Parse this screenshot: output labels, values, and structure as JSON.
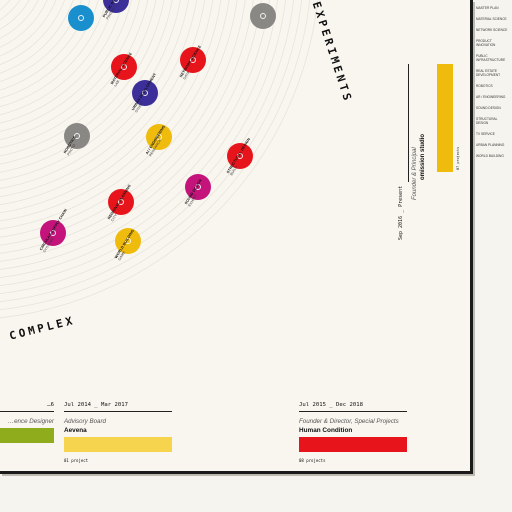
{
  "curved_text": {
    "experiments": "EXPERIMENTS",
    "complex": "COMPLEX"
  },
  "nodes": [
    {
      "color": "#1a8fce",
      "label": "",
      "sub": ""
    },
    {
      "color": "#3c2f9a",
      "label": "PUBLIC INFRASTRUCTURE",
      "sub": "PROJECT"
    },
    {
      "color": "#8a8884",
      "label": "",
      "sub": ""
    },
    {
      "color": "#e8141c",
      "label": "NETWORK SCIENCE",
      "sub": "DATA"
    },
    {
      "color": "#e8141c",
      "label": "MATERIAL SCIENCE",
      "sub": "LAB"
    },
    {
      "color": "#3c2f9a",
      "label": "URBAN DEVELOPMENT",
      "sub": "STUDY"
    },
    {
      "color": "#8a8884",
      "label": "ROBOTICS",
      "sub": "PROTO"
    },
    {
      "color": "#efbb0c",
      "label": "AI / ENGINEERING",
      "sub": "RESEARCH"
    },
    {
      "color": "#e8141c",
      "label": "STRUCTURAL DESIGN",
      "sub": "BUILD"
    },
    {
      "color": "#c4137b",
      "label": "SOUND DESIGN",
      "sub": "EXHIBIT"
    },
    {
      "color": "#e8141c",
      "label": "REGIONAL PLANNING",
      "sub": "CITY"
    },
    {
      "color": "#c4137b",
      "label": "CIRCULAR SUPPLY CHAIN",
      "sub": "SYSTEMS"
    },
    {
      "color": "#efbb0c",
      "label": "WORLD BUILDING",
      "sub": "GAME"
    }
  ],
  "current_job": {
    "dates": "Sep 2016 _ Present",
    "role": "Founder & Principal",
    "org": "omission studio",
    "count": "87 projects",
    "color": "#efbb0c"
  },
  "jobs": [
    {
      "dates": "…6",
      "role": "…ence Designer",
      "org": "",
      "count": "",
      "color": "#8fac1c"
    },
    {
      "dates": "Jul 2014 _ Mar 2017",
      "role": "Advisory Board",
      "org": "Aevena",
      "count": "01 project",
      "color": "#f7d44e"
    },
    {
      "dates": "Jul 2015 _ Dec 2018",
      "role": "Founder & Director, Special Projects",
      "org": "Human Condition",
      "count": "08 projects",
      "color": "#e8141c"
    }
  ],
  "side_items": [
    "MASTER PLAN",
    "MATERIAL SCIENCE",
    "NETWORK SCIENCE",
    "PRODUCT INNOVATION",
    "PUBLIC INFRASTRUCTURE",
    "REAL ESTATE DEVELOPMENT",
    "ROBOTICS",
    "AR / ENGINEERING",
    "SOUND DESIGN",
    "STRUCTURAL DESIGN",
    "TV SERVICE",
    "URBAN PLANNING",
    "WORLD BUILDING"
  ]
}
